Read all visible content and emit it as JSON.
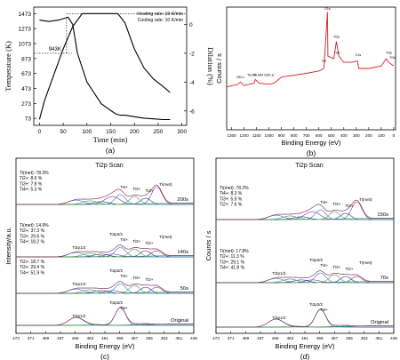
{
  "chart_data": [
    {
      "id": "a",
      "type": "line",
      "panel_label": "(a)",
      "xlabel": "Time (min)",
      "ylabel_left": "Temperature (K)",
      "ylabel_right": "Dilation (%)",
      "xticks": [
        "0",
        "50",
        "100",
        "150",
        "200",
        "250",
        "300"
      ],
      "yticks_left": [
        "73",
        "273",
        "473",
        "673",
        "873",
        "1073",
        "1273",
        "1473"
      ],
      "yticks_right": [
        "-6",
        "-4",
        "-2",
        "0"
      ],
      "xlim": [
        -12,
        310
      ],
      "ylim_left": [
        -20,
        1560
      ],
      "ylim_right": [
        -7,
        1.2
      ],
      "annotations": [
        "Heating rate: 10 K/min",
        "Cooling rate: 10 K/min",
        "943K"
      ],
      "series": [
        {
          "axis": "left",
          "x": [
            0,
            10,
            30,
            50,
            70,
            90,
            110,
            130,
            150,
            165,
            180,
            200,
            220,
            240,
            260,
            275
          ],
          "y": [
            60,
            300,
            650,
            1000,
            1300,
            1473,
            1473,
            1473,
            1473,
            1473,
            1350,
            1000,
            750,
            600,
            500,
            420
          ]
        },
        {
          "axis": "right",
          "x": [
            0,
            20,
            40,
            60,
            70,
            80,
            100,
            130,
            160,
            170,
            180,
            200,
            220,
            240,
            260,
            275
          ],
          "y": [
            0.3,
            0.2,
            0.3,
            0.5,
            0,
            -2,
            -4,
            -5.5,
            -6.2,
            -6.3,
            -6.3,
            -6.4,
            -6.5,
            -6.55,
            -6.6,
            -6.6
          ]
        }
      ]
    },
    {
      "id": "b",
      "type": "line",
      "panel_label": "(b)",
      "xlabel": "Binding Energy (eV)",
      "ylabel": "Counts / s",
      "xticks": [
        "1300",
        "1200",
        "1100",
        "1000",
        "900",
        "800",
        "700",
        "600",
        "500",
        "400",
        "300",
        "200",
        "100",
        "0"
      ],
      "xlim": [
        1340,
        -15
      ],
      "ylim": [
        0,
        1
      ],
      "peak_labels": [
        "OKL1",
        "TiLM2",
        "TiLMM",
        "O(KL1)",
        "O1s",
        "TiS",
        "Ti2p",
        "Ti3s",
        "C1s",
        "Ti3p",
        "Ti3d"
      ],
      "series": [
        {
          "x": [
            1340,
            1250,
            1230,
            1200,
            1120,
            1110,
            1080,
            1000,
            960,
            900,
            700,
            600,
            560,
            531,
            528,
            480,
            460,
            440,
            400,
            340,
            290,
            280,
            200,
            100,
            60,
            40,
            0
          ],
          "y": [
            0.35,
            0.37,
            0.39,
            0.36,
            0.38,
            0.41,
            0.38,
            0.37,
            0.38,
            0.43,
            0.46,
            0.48,
            0.5,
            0.96,
            0.6,
            0.58,
            0.72,
            0.6,
            0.55,
            0.55,
            0.56,
            0.5,
            0.5,
            0.52,
            0.58,
            0.55,
            0.52
          ]
        }
      ]
    },
    {
      "id": "c",
      "type": "line",
      "panel_label": "(c)",
      "title": "Ti2p Scan",
      "xlabel": "Binding Energy (eV)",
      "ylabel": "Intensity/a.u.",
      "xticks": [
        "473",
        "471",
        "469",
        "467",
        "465",
        "463",
        "461",
        "459",
        "457",
        "455",
        "453",
        "451",
        "449"
      ],
      "xlim": [
        473,
        449
      ],
      "spectra": [
        {
          "label": "200s",
          "composition": [
            "Ti(met): 78.3%",
            "Ti2+: 8.6 %",
            "Ti3+: 7.8 %",
            "Ti4+: 5.3 %"
          ],
          "peak_labels": [
            "Ti4+",
            "Ti2+",
            "Ti3+",
            "Ti(met)"
          ]
        },
        {
          "label": "140s",
          "composition": [
            "Ti(met): 14.9%",
            "Ti2+: 37.3 %",
            "Ti3+: 29.6 %",
            "Ti4+: 18.2 %"
          ],
          "peak_labels": [
            "Ti2p1/2",
            "Ti2p3/2",
            "Ti4+",
            "Ti3+",
            "Ti2+",
            "Ti(met)"
          ]
        },
        {
          "label": "50s",
          "composition": [
            "Ti2+: 18.7 %",
            "Ti3+: 29.4 %",
            "Ti4+: 51.9 %"
          ],
          "peak_labels": [
            "Ti2p1/2",
            "Ti2p3/2",
            "Ti4+",
            "Ti3+",
            "Ti2+"
          ]
        },
        {
          "label": "Original",
          "composition": [],
          "peak_labels": [
            "Ti2p1/2",
            "Ti2p3/2",
            "Ti4+"
          ]
        }
      ]
    },
    {
      "id": "d",
      "type": "line",
      "panel_label": "(d)",
      "title": "Ti2p Scan",
      "xlabel": "Binding Energy (eV)",
      "ylabel": "Counts / s",
      "xticks": [
        "473",
        "471",
        "469",
        "467",
        "465",
        "463",
        "461",
        "459",
        "457",
        "455",
        "453",
        "451",
        "449"
      ],
      "xlim": [
        473,
        449
      ],
      "spectra": [
        {
          "label": "150s",
          "composition": [
            "Ti(met): 78.2%",
            "Ti4+: 8.3 %",
            "Ti3+: 5.9 %",
            "Ti2+: 7.6 %"
          ],
          "peak_labels": [
            "Ti4+",
            "Ti3+",
            "Ti2+",
            "Ti(met)"
          ]
        },
        {
          "label": "70s",
          "composition": [
            "Ti(met): 17.8%",
            "Ti2+: 11.3 %",
            "Ti3+: 29.1 %",
            "Ti4+: 41.8 %"
          ],
          "peak_labels": [
            "Ti2p1/2",
            "Ti2p3/2",
            "Ti4+",
            "Ti3+",
            "Ti2+",
            "Ti(met)"
          ]
        },
        {
          "label": "Original",
          "composition": [],
          "peak_labels": [
            "Ti2p1/2",
            "Ti2p3/2",
            "Ti4+"
          ]
        }
      ]
    }
  ]
}
